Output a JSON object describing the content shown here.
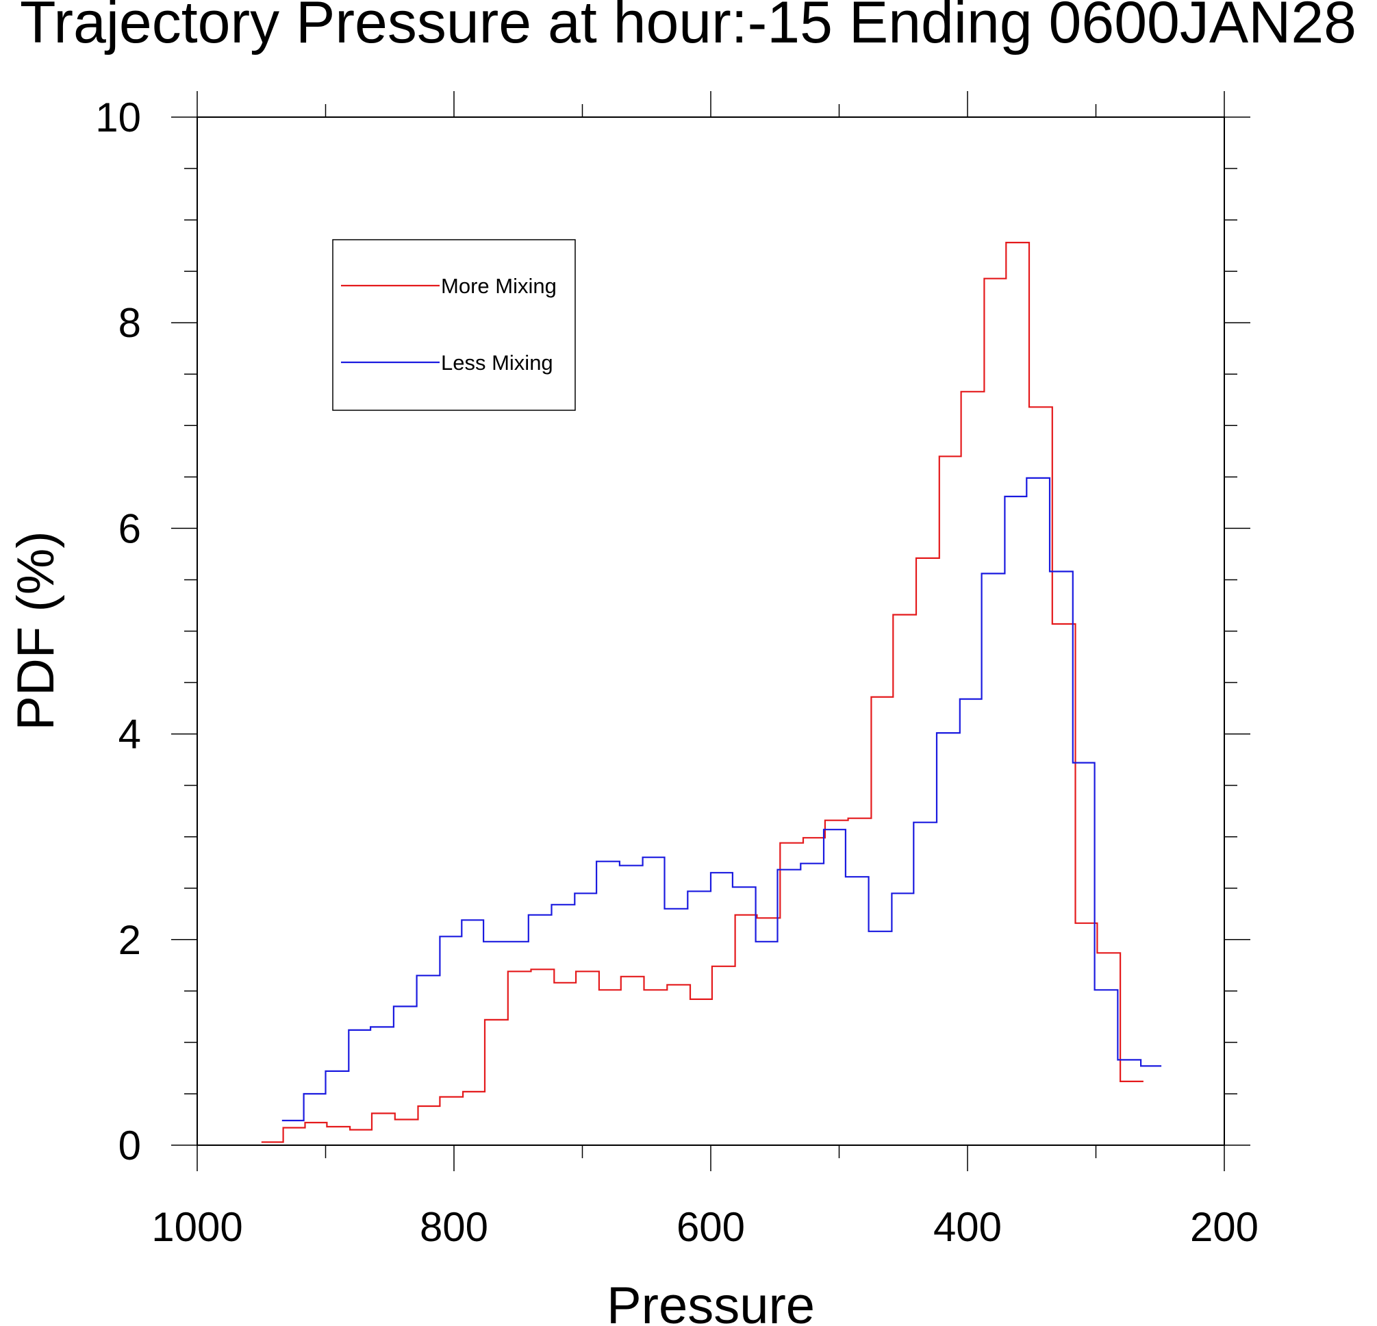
{
  "chart_data": {
    "type": "line",
    "step": true,
    "title": "Trajectory Pressure at hour:-15 Ending 0600JAN28",
    "xlabel": "Pressure",
    "ylabel": "PDF (%)",
    "xlim": [
      1000,
      200
    ],
    "xscale": "reversed",
    "ylim": [
      0,
      10
    ],
    "xticks": [
      1000,
      800,
      600,
      400,
      200
    ],
    "yticks": [
      0,
      2,
      4,
      6,
      8,
      10
    ],
    "grid": false,
    "legend": {
      "placement": "top-left"
    },
    "series": [
      {
        "name": "More Mixing",
        "color": "#e41a1c",
        "bins": [
          [
            950,
            933,
            0.03
          ],
          [
            933,
            916,
            0.17
          ],
          [
            916,
            899,
            0.22
          ],
          [
            899,
            881,
            0.18
          ],
          [
            881,
            864,
            0.15
          ],
          [
            864,
            846,
            0.31
          ],
          [
            846,
            828,
            0.25
          ],
          [
            828,
            811,
            0.38
          ],
          [
            811,
            793,
            0.47
          ],
          [
            793,
            776,
            0.52
          ],
          [
            776,
            758,
            1.22
          ],
          [
            758,
            740,
            1.69
          ],
          [
            740,
            722,
            1.71
          ],
          [
            722,
            705,
            1.58
          ],
          [
            705,
            687,
            1.69
          ],
          [
            687,
            670,
            1.51
          ],
          [
            670,
            652,
            1.64
          ],
          [
            652,
            634,
            1.51
          ],
          [
            634,
            616,
            1.56
          ],
          [
            616,
            599,
            1.42
          ],
          [
            599,
            581,
            1.74
          ],
          [
            581,
            564,
            2.24
          ],
          [
            564,
            546,
            2.21
          ],
          [
            546,
            528,
            2.94
          ],
          [
            528,
            511,
            2.99
          ],
          [
            511,
            493,
            3.16
          ],
          [
            493,
            475,
            3.18
          ],
          [
            475,
            458,
            4.36
          ],
          [
            458,
            440,
            5.16
          ],
          [
            440,
            422,
            5.71
          ],
          [
            422,
            405,
            6.7
          ],
          [
            405,
            387,
            7.33
          ],
          [
            387,
            370,
            8.43
          ],
          [
            370,
            352,
            8.78
          ],
          [
            352,
            334,
            7.18
          ],
          [
            334,
            316,
            5.07
          ],
          [
            316,
            299,
            2.16
          ],
          [
            299,
            281,
            1.87
          ],
          [
            281,
            263,
            0.62
          ]
        ]
      },
      {
        "name": "Less Mixing",
        "color": "#1a1adf",
        "bins": [
          [
            934,
            917,
            0.24
          ],
          [
            917,
            900,
            0.5
          ],
          [
            900,
            882,
            0.72
          ],
          [
            882,
            865,
            1.12
          ],
          [
            865,
            847,
            1.15
          ],
          [
            847,
            829,
            1.35
          ],
          [
            829,
            811,
            1.65
          ],
          [
            811,
            794,
            2.03
          ],
          [
            794,
            777,
            2.19
          ],
          [
            777,
            759,
            1.98
          ],
          [
            759,
            742,
            1.98
          ],
          [
            742,
            724,
            2.24
          ],
          [
            724,
            706,
            2.34
          ],
          [
            706,
            689,
            2.45
          ],
          [
            689,
            671,
            2.76
          ],
          [
            671,
            653,
            2.72
          ],
          [
            653,
            636,
            2.8
          ],
          [
            636,
            618,
            2.3
          ],
          [
            618,
            600,
            2.47
          ],
          [
            600,
            583,
            2.65
          ],
          [
            583,
            565,
            2.51
          ],
          [
            565,
            548,
            1.98
          ],
          [
            548,
            530,
            2.68
          ],
          [
            530,
            512,
            2.74
          ],
          [
            512,
            495,
            3.07
          ],
          [
            495,
            477,
            2.61
          ],
          [
            477,
            459,
            2.08
          ],
          [
            459,
            442,
            2.45
          ],
          [
            442,
            424,
            3.14
          ],
          [
            424,
            406,
            4.01
          ],
          [
            406,
            389,
            4.34
          ],
          [
            389,
            371,
            5.56
          ],
          [
            371,
            354,
            6.31
          ],
          [
            354,
            336,
            6.49
          ],
          [
            336,
            318,
            5.58
          ],
          [
            318,
            301,
            3.72
          ],
          [
            301,
            283,
            1.51
          ],
          [
            283,
            265,
            0.83
          ],
          [
            265,
            249,
            0.77
          ]
        ]
      }
    ]
  }
}
